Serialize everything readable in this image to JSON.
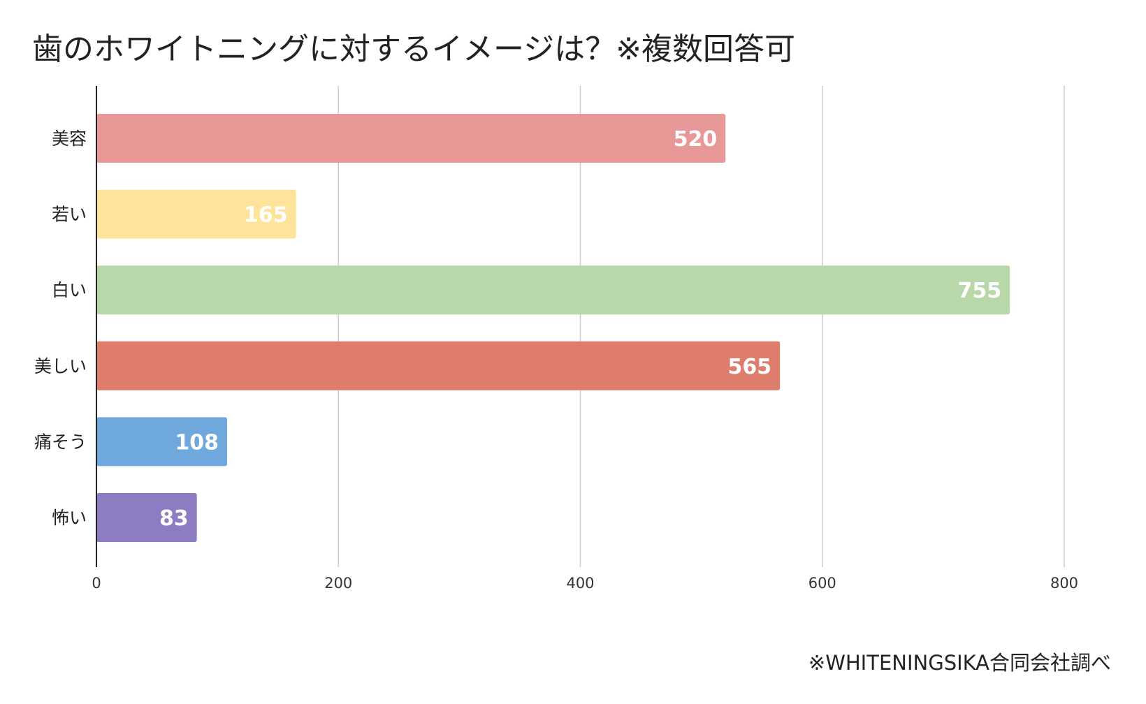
{
  "title": "歯のホワイトニングに対するイメージは？※複数回答可",
  "source_note": "※WHITENINGSIKA合同会社調べ",
  "chart_data": {
    "type": "bar",
    "orientation": "horizontal",
    "title": "歯のホワイトニングに対するイメージは？※複数回答可",
    "categories": [
      "美容",
      "若い",
      "白い",
      "美しい",
      "痛そう",
      "怖い"
    ],
    "values": [
      520,
      165,
      755,
      565,
      108,
      83
    ],
    "bar_colors": [
      "#e99898",
      "#fde49a",
      "#b8d8aa",
      "#df7d6c",
      "#6fa8dc",
      "#8e7cc3"
    ],
    "data_label_color": "#ffffff",
    "xlim": [
      0,
      800
    ],
    "x_ticks": [
      0,
      200,
      400,
      600,
      800
    ],
    "x_tick_labels": [
      "0",
      "200",
      "400",
      "600",
      "800"
    ],
    "grid": "vertical",
    "xlabel": "",
    "ylabel": ""
  }
}
